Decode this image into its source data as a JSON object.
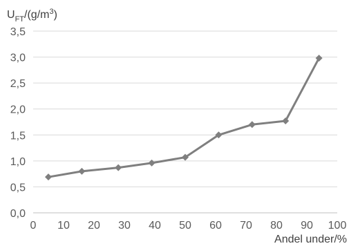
{
  "chart_data": {
    "type": "line",
    "title": "",
    "ylabel_base": "U",
    "ylabel_sub": "FT",
    "ylabel_unit": "/(g/m",
    "ylabel_sup": "3",
    "ylabel_close": ")",
    "xlabel": "Andel under/%",
    "xlim": [
      0,
      100
    ],
    "ylim": [
      0,
      3.5
    ],
    "x_ticks": [
      0,
      10,
      20,
      30,
      40,
      50,
      60,
      70,
      80,
      90,
      100
    ],
    "y_ticks": [
      "0,0",
      "0,5",
      "1,0",
      "1,5",
      "2,0",
      "2,5",
      "3,0",
      "3,5"
    ],
    "y_tick_values": [
      0,
      0.5,
      1.0,
      1.5,
      2.0,
      2.5,
      3.0,
      3.5
    ],
    "grid": "horizontal",
    "series": [
      {
        "color": "#7f7f7f",
        "marker": "diamond",
        "x": [
          5,
          16,
          28,
          39,
          50,
          61,
          72,
          83,
          94
        ],
        "y": [
          0.69,
          0.8,
          0.87,
          0.96,
          1.07,
          1.5,
          1.7,
          1.77,
          2.98
        ]
      }
    ]
  }
}
